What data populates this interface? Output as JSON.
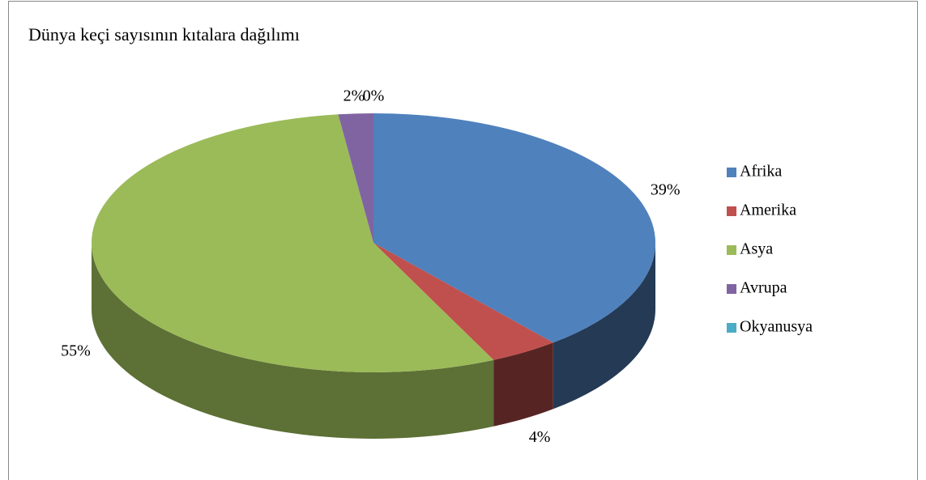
{
  "chart_data": {
    "type": "pie",
    "title": "Dünya keçi sayısının kıtalara dağılımı",
    "categories": [
      "Afrika",
      "Amerika",
      "Asya",
      "Avrupa",
      "Okyanusya"
    ],
    "values": [
      39,
      4,
      55,
      2,
      0
    ],
    "value_labels": [
      "39%",
      "4%",
      "55%",
      "2%",
      "0%"
    ],
    "colors": [
      "#4f81bd",
      "#c0504d",
      "#9bbb59",
      "#8064a2",
      "#4bacc6"
    ],
    "legend": "right"
  }
}
